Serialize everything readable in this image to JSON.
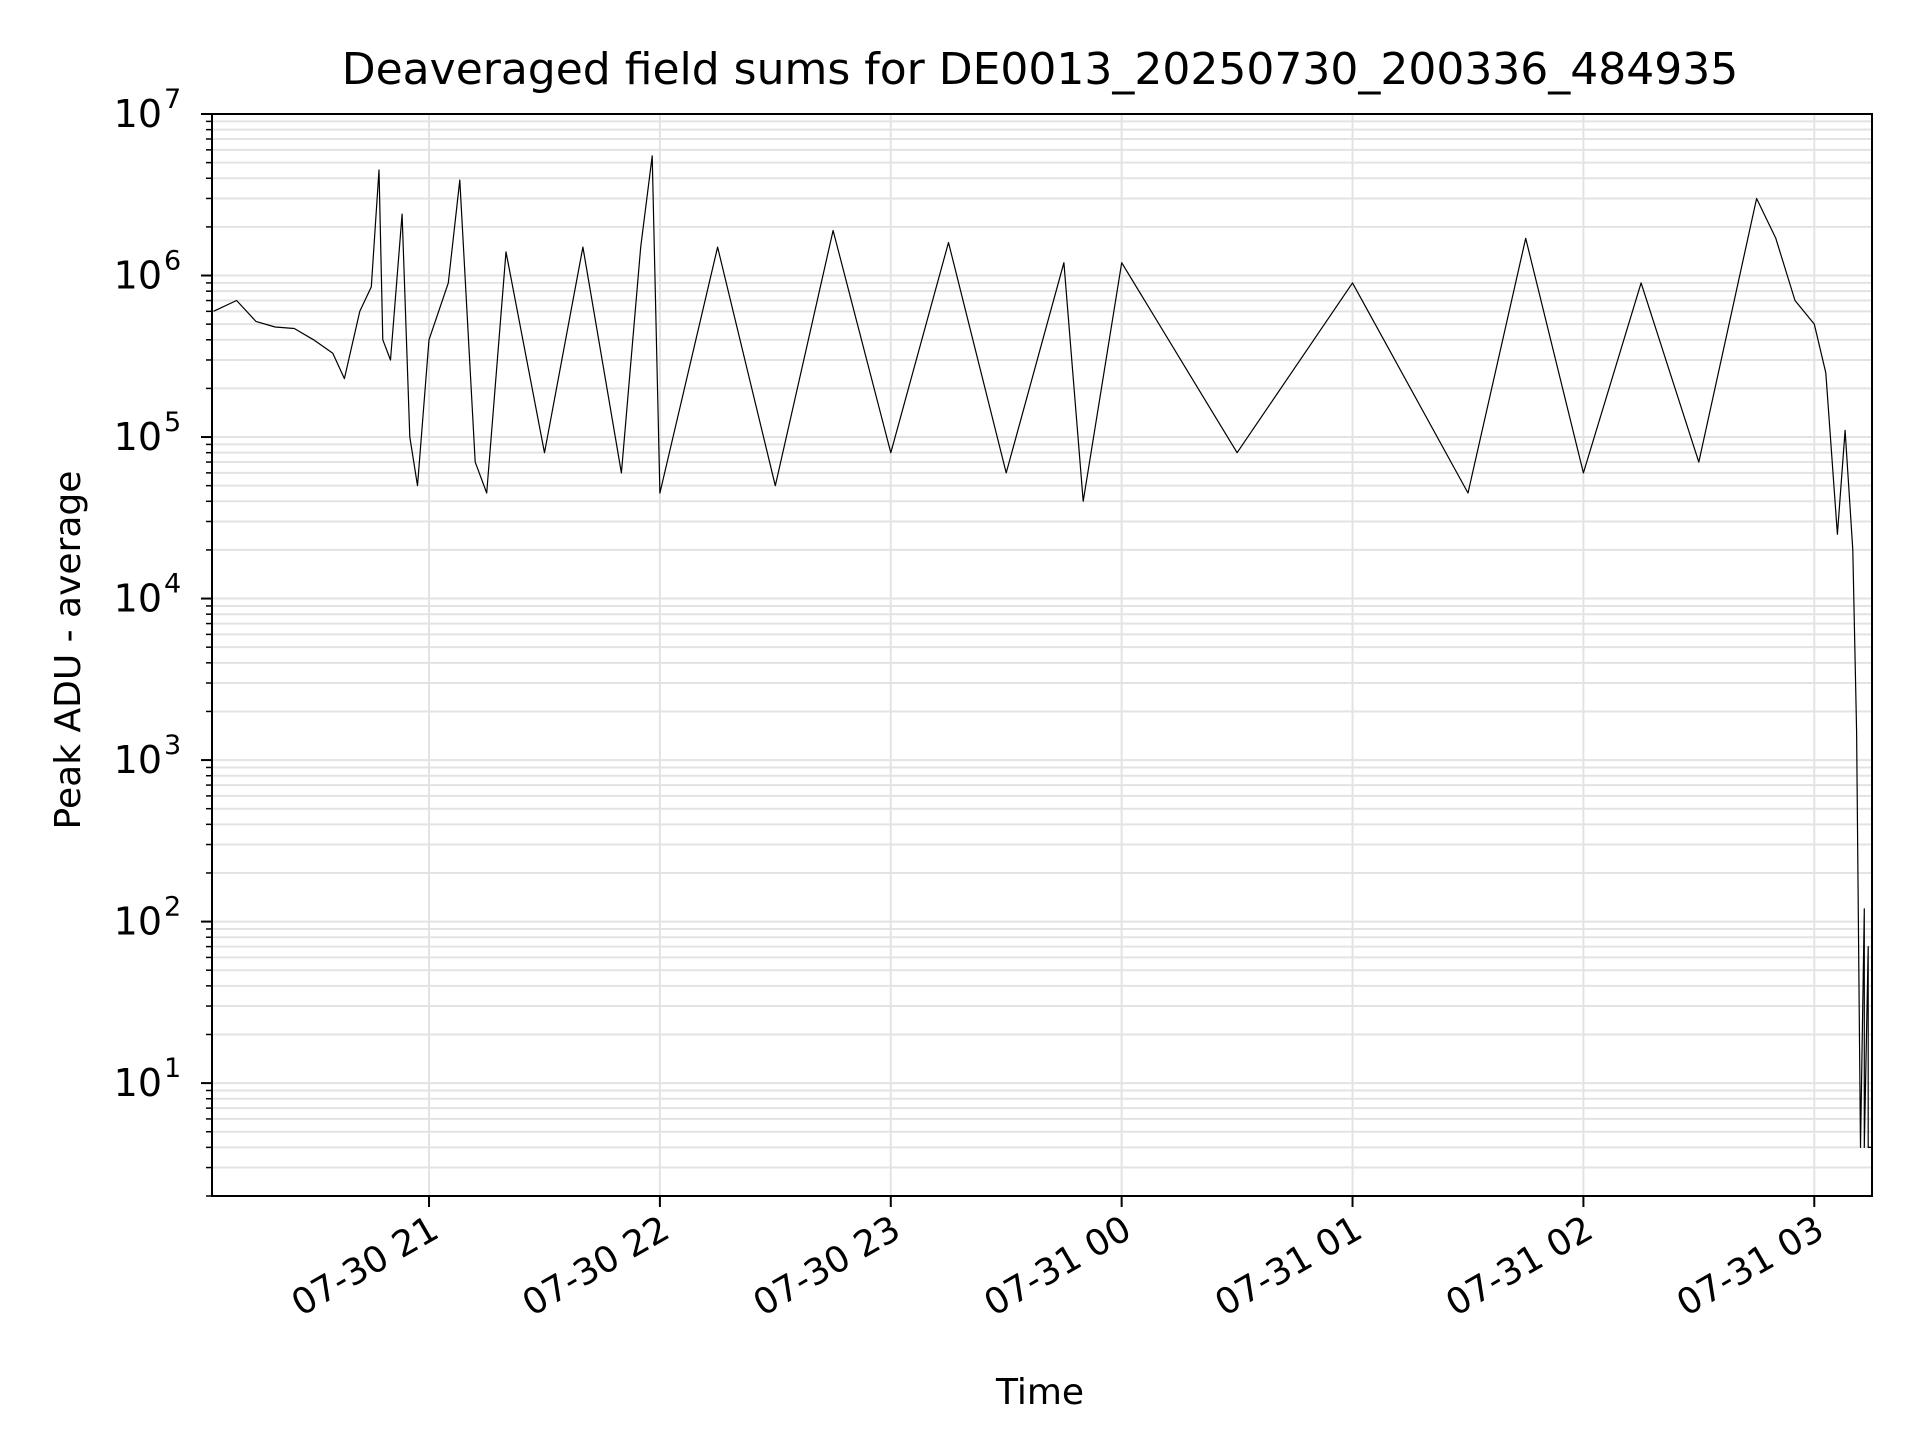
{
  "chart_data": {
    "type": "line",
    "title": "Deaveraged field sums for DE0013_20250730_200336_484935",
    "xlabel": "Time",
    "ylabel": "Peak ADU - average",
    "x_start": "2025-07-30 20:03:36",
    "x_end": "2025-07-31 03:15:00",
    "xticks": [
      {
        "t": "2025-07-30 21:00",
        "label": "07-30 21"
      },
      {
        "t": "2025-07-30 22:00",
        "label": "07-30 22"
      },
      {
        "t": "2025-07-30 23:00",
        "label": "07-30 23"
      },
      {
        "t": "2025-07-31 00:00",
        "label": "07-31 00"
      },
      {
        "t": "2025-07-31 01:00",
        "label": "07-31 01"
      },
      {
        "t": "2025-07-31 02:00",
        "label": "07-31 02"
      },
      {
        "t": "2025-07-31 03:00",
        "label": "07-31 03"
      }
    ],
    "yscale": "log",
    "ylim": [
      2,
      10000000
    ],
    "yticks": [
      {
        "value": 10,
        "base": "10",
        "exp": "1"
      },
      {
        "value": 100,
        "base": "10",
        "exp": "2"
      },
      {
        "value": 1000,
        "base": "10",
        "exp": "3"
      },
      {
        "value": 10000,
        "base": "10",
        "exp": "4"
      },
      {
        "value": 100000,
        "base": "10",
        "exp": "5"
      },
      {
        "value": 1000000,
        "base": "10",
        "exp": "6"
      },
      {
        "value": 10000000,
        "base": "10",
        "exp": "7"
      }
    ],
    "grid": true,
    "line_color": "#000000",
    "series": [
      {
        "points": [
          [
            "2025-07-30 20:04",
            600000
          ],
          [
            "2025-07-30 20:10",
            700000
          ],
          [
            "2025-07-30 20:15",
            520000
          ],
          [
            "2025-07-30 20:20",
            480000
          ],
          [
            "2025-07-30 20:25",
            470000
          ],
          [
            "2025-07-30 20:30",
            400000
          ],
          [
            "2025-07-30 20:35",
            330000
          ],
          [
            "2025-07-30 20:38",
            230000
          ],
          [
            "2025-07-30 20:42",
            600000
          ],
          [
            "2025-07-30 20:45",
            850000
          ],
          [
            "2025-07-30 20:47",
            4500000
          ],
          [
            "2025-07-30 20:48",
            400000
          ],
          [
            "2025-07-30 20:50",
            300000
          ],
          [
            "2025-07-30 20:53",
            2400000
          ],
          [
            "2025-07-30 20:55",
            100000
          ],
          [
            "2025-07-30 20:57",
            50000
          ],
          [
            "2025-07-30 21:00",
            400000
          ],
          [
            "2025-07-30 21:05",
            900000
          ],
          [
            "2025-07-30 21:08",
            3900000
          ],
          [
            "2025-07-30 21:12",
            70000
          ],
          [
            "2025-07-30 21:15",
            45000
          ],
          [
            "2025-07-30 21:20",
            1400000
          ],
          [
            "2025-07-30 21:30",
            80000
          ],
          [
            "2025-07-30 21:40",
            1500000
          ],
          [
            "2025-07-30 21:50",
            60000
          ],
          [
            "2025-07-30 21:55",
            1500000
          ],
          [
            "2025-07-30 21:58",
            5500000
          ],
          [
            "2025-07-30 22:00",
            45000
          ],
          [
            "2025-07-30 22:15",
            1500000
          ],
          [
            "2025-07-30 22:30",
            50000
          ],
          [
            "2025-07-30 22:45",
            1900000
          ],
          [
            "2025-07-30 23:00",
            80000
          ],
          [
            "2025-07-30 23:15",
            1600000
          ],
          [
            "2025-07-30 23:30",
            60000
          ],
          [
            "2025-07-30 23:45",
            1200000
          ],
          [
            "2025-07-30 23:50",
            40000
          ],
          [
            "2025-07-31 00:00",
            1200000
          ],
          [
            "2025-07-31 00:30",
            80000
          ],
          [
            "2025-07-31 01:00",
            900000
          ],
          [
            "2025-07-31 01:30",
            45000
          ],
          [
            "2025-07-31 01:45",
            1700000
          ],
          [
            "2025-07-31 02:00",
            60000
          ],
          [
            "2025-07-31 02:15",
            900000
          ],
          [
            "2025-07-31 02:30",
            70000
          ],
          [
            "2025-07-31 02:45",
            3000000
          ],
          [
            "2025-07-31 02:50",
            1700000
          ],
          [
            "2025-07-31 02:55",
            700000
          ],
          [
            "2025-07-31 03:00",
            500000
          ],
          [
            "2025-07-31 03:03",
            250000
          ],
          [
            "2025-07-31 03:06",
            25000
          ],
          [
            "2025-07-31 03:08",
            110000
          ],
          [
            "2025-07-31 03:10",
            20000
          ],
          [
            "2025-07-31 03:11",
            1500
          ],
          [
            "2025-07-31 03:12",
            4
          ],
          [
            "2025-07-31 03:13",
            120
          ],
          [
            "2025-07-31 03:13",
            4
          ],
          [
            "2025-07-31 03:14",
            70
          ],
          [
            "2025-07-31 03:14",
            4
          ],
          [
            "2025-07-31 03:15",
            4
          ]
        ]
      }
    ]
  }
}
